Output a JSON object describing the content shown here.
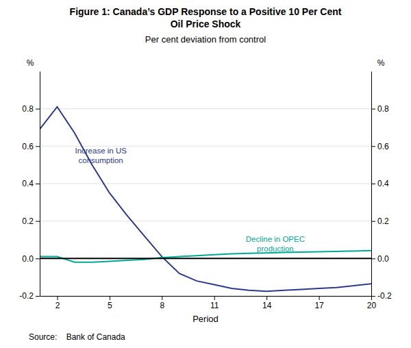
{
  "chart_data": {
    "type": "line",
    "title": "Figure 1: Canada’s GDP Response to a Positive 10 Per Cent\nOil Price Shock",
    "subtitle": "Per cent deviation from control",
    "xlabel": "Period",
    "ylabel": "%",
    "y2label": "%",
    "source": "Source:    Bank of Canada",
    "x": [
      1,
      2,
      3,
      4,
      5,
      6,
      7,
      8,
      9,
      10,
      11,
      12,
      13,
      14,
      15,
      16,
      17,
      18,
      19,
      20
    ],
    "series": [
      {
        "name": "Increase in US\nconsumption",
        "color": "#2B3A8F",
        "values": [
          0.69,
          0.81,
          0.67,
          0.5,
          0.35,
          0.23,
          0.12,
          0.01,
          -0.08,
          -0.12,
          -0.14,
          -0.16,
          -0.17,
          -0.175,
          -0.17,
          -0.165,
          -0.16,
          -0.155,
          -0.145,
          -0.135
        ]
      },
      {
        "name": "Decline in OPEC\nproduction",
        "color": "#00A896",
        "values": [
          0.01,
          0.01,
          -0.02,
          -0.02,
          -0.015,
          -0.01,
          -0.005,
          0.005,
          0.01,
          0.015,
          0.02,
          0.025,
          0.028,
          0.03,
          0.032,
          0.034,
          0.036,
          0.038,
          0.04,
          0.042
        ]
      }
    ],
    "annotations": [
      {
        "text": "Increase in US\nconsumption",
        "x": 4.5,
        "y": 0.6,
        "color": "#2B3A8F"
      },
      {
        "text": "Decline in OPEC\nproduction",
        "x": 14.5,
        "y": 0.13,
        "color": "#00A896"
      }
    ],
    "reference_lines": [
      {
        "y": 0,
        "color": "#000000"
      }
    ],
    "xlim": [
      1,
      20
    ],
    "xticks": [
      2,
      5,
      8,
      11,
      14,
      17,
      20
    ],
    "ylim": [
      -0.2,
      1.0
    ],
    "yticks": [
      -0.2,
      {
        "value": 0,
        "label": "0.0"
      },
      0.2,
      0.4,
      0.6,
      0.8
    ],
    "y2lim": [
      -0.2,
      1.0
    ],
    "y2ticks": [
      -0.2,
      {
        "value": 0,
        "label": "0.0"
      },
      0.2,
      0.4,
      0.6,
      0.8
    ],
    "grid": "y"
  }
}
